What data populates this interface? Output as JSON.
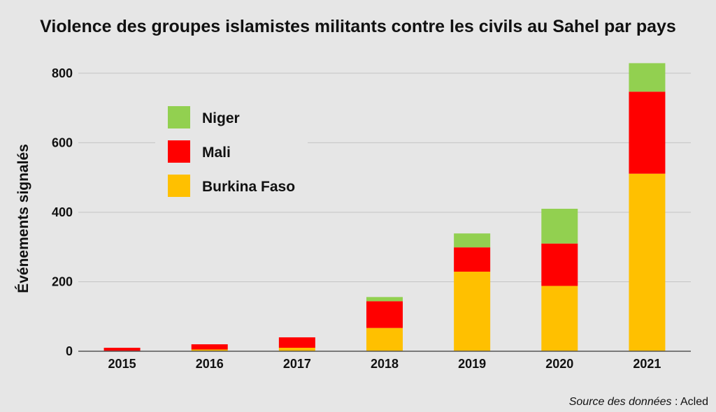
{
  "chart_data": {
    "type": "bar",
    "stacked": true,
    "title": "Violence des groupes islamistes militants contre les civils au Sahel par pays",
    "xlabel": "",
    "ylabel": "Événements signalés",
    "categories": [
      "2015",
      "2016",
      "2017",
      "2018",
      "2019",
      "2020",
      "2021"
    ],
    "ylim": [
      0,
      850
    ],
    "yticks": [
      0,
      200,
      400,
      600,
      800
    ],
    "grid": true,
    "legend_placement": "top-left",
    "series": [
      {
        "name": "Burkina Faso",
        "color": "#ffc000",
        "values": [
          0,
          5,
          10,
          67,
          229,
          188,
          511
        ]
      },
      {
        "name": "Mali",
        "color": "#ff0000",
        "values": [
          10,
          15,
          30,
          77,
          70,
          122,
          236
        ]
      },
      {
        "name": "Niger",
        "color": "#92d050",
        "values": [
          0,
          0,
          0,
          12,
          40,
          100,
          82
        ]
      }
    ],
    "legend_order": [
      "Niger",
      "Mali",
      "Burkina Faso"
    ]
  },
  "source": {
    "label": "Source des données",
    "separator": " : ",
    "value": "Acled"
  }
}
